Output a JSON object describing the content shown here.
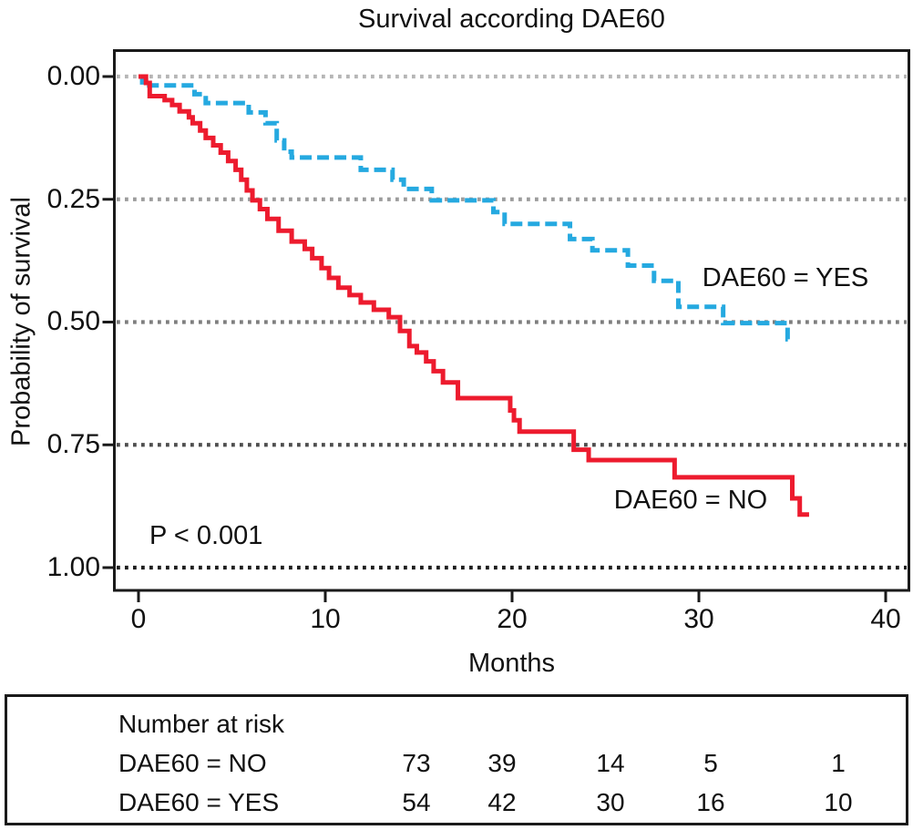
{
  "title": "Survival according DAE60",
  "axes": {
    "y_label": "Probability of survival",
    "x_label": "Months"
  },
  "annotation_p_value": "P < 0.001",
  "chart_data": {
    "type": "line",
    "subtype": "kaplan_meier_step_curves",
    "title": "Survival according DAE60",
    "xlabel": "Months",
    "ylabel": "Probability of survival",
    "xlim": [
      0,
      40
    ],
    "ylim": [
      0,
      1
    ],
    "y_axis_inverted_top_is_zero": true,
    "grid": "dotted horizontal lines at each y tick, darker toward bottom",
    "legend_position": "labels annotated beside curves",
    "p_value_text": "P < 0.001",
    "x_ticks": [
      {
        "label": "0",
        "value": 0
      },
      {
        "label": "10",
        "value": 10
      },
      {
        "label": "20",
        "value": 20
      },
      {
        "label": "30",
        "value": 30
      },
      {
        "label": "40",
        "value": 40
      }
    ],
    "y_ticks": [
      {
        "label": "0.00",
        "value": 0.0,
        "grid_color": "#b6b6b6"
      },
      {
        "label": "0.25",
        "value": 0.25,
        "grid_color": "#9c9c9c"
      },
      {
        "label": "0.50",
        "value": 0.5,
        "grid_color": "#7e7e7e"
      },
      {
        "label": "0.75",
        "value": 0.75,
        "grid_color": "#4e4e4e"
      },
      {
        "label": "1.00",
        "value": 1.0,
        "grid_color": "#1e1e1e"
      }
    ],
    "series": [
      {
        "key": "yes",
        "name": "DAE60 = YES",
        "color": "#25a9e0",
        "style": "dashed",
        "end_t": 34.85,
        "steps": [
          [
            0,
            0
          ],
          [
            0.2,
            0.018
          ],
          [
            3.0,
            0.036
          ],
          [
            3.6,
            0.054
          ],
          [
            5.9,
            0.073
          ],
          [
            6.8,
            0.095
          ],
          [
            7.4,
            0.13
          ],
          [
            7.8,
            0.153
          ],
          [
            8.2,
            0.165
          ],
          [
            11.9,
            0.19
          ],
          [
            13.6,
            0.21
          ],
          [
            14.2,
            0.229
          ],
          [
            15.7,
            0.252
          ],
          [
            19.0,
            0.276
          ],
          [
            19.6,
            0.3
          ],
          [
            23.1,
            0.331
          ],
          [
            24.3,
            0.354
          ],
          [
            26.2,
            0.385
          ],
          [
            27.6,
            0.416
          ],
          [
            28.9,
            0.469
          ],
          [
            31.3,
            0.502
          ],
          [
            34.75,
            0.535
          ]
        ]
      },
      {
        "key": "no",
        "name": "DAE60 = NO",
        "color": "#ed1b2e",
        "style": "solid",
        "end_t": 35.9,
        "steps": [
          [
            0,
            0
          ],
          [
            0.4,
            0.013
          ],
          [
            0.6,
            0.04
          ],
          [
            1.4,
            0.048
          ],
          [
            1.8,
            0.058
          ],
          [
            2.2,
            0.071
          ],
          [
            2.7,
            0.083
          ],
          [
            2.9,
            0.095
          ],
          [
            3.3,
            0.11
          ],
          [
            3.6,
            0.125
          ],
          [
            4.0,
            0.14
          ],
          [
            4.4,
            0.155
          ],
          [
            4.8,
            0.172
          ],
          [
            5.2,
            0.19
          ],
          [
            5.5,
            0.21
          ],
          [
            5.8,
            0.232
          ],
          [
            6.1,
            0.252
          ],
          [
            6.5,
            0.27
          ],
          [
            6.9,
            0.29
          ],
          [
            7.5,
            0.314
          ],
          [
            8.2,
            0.336
          ],
          [
            8.9,
            0.351
          ],
          [
            9.3,
            0.37
          ],
          [
            9.8,
            0.39
          ],
          [
            10.2,
            0.41
          ],
          [
            10.7,
            0.43
          ],
          [
            11.3,
            0.445
          ],
          [
            11.9,
            0.46
          ],
          [
            12.6,
            0.475
          ],
          [
            13.4,
            0.49
          ],
          [
            14.0,
            0.518
          ],
          [
            14.5,
            0.549
          ],
          [
            14.9,
            0.562
          ],
          [
            15.4,
            0.58
          ],
          [
            15.8,
            0.6
          ],
          [
            16.3,
            0.623
          ],
          [
            17.1,
            0.655
          ],
          [
            19.9,
            0.68
          ],
          [
            20.1,
            0.7
          ],
          [
            20.4,
            0.723
          ],
          [
            23.3,
            0.76
          ],
          [
            24.1,
            0.781
          ],
          [
            28.7,
            0.816
          ],
          [
            35.0,
            0.859
          ],
          [
            35.4,
            0.892
          ]
        ]
      }
    ]
  },
  "at_risk": {
    "header": "Number at risk",
    "rows": [
      {
        "label": "DAE60 = NO",
        "values": [
          "73",
          "39",
          "14",
          "5",
          "1"
        ]
      },
      {
        "label": "DAE60 = YES",
        "values": [
          "54",
          "42",
          "30",
          "16",
          "10"
        ]
      }
    ]
  }
}
